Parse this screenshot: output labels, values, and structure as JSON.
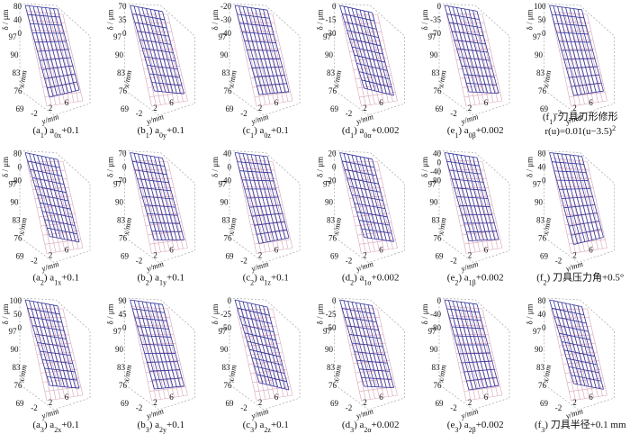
{
  "axes": {
    "z_label": "δ / μm",
    "x_label": "x/mm",
    "y_label": "y/mm",
    "xticks": [
      "97",
      "90",
      "83",
      "76",
      "69"
    ],
    "yticks": [
      "-2",
      "2",
      "6"
    ]
  },
  "panels": [
    {
      "zticks": [
        "80",
        "40",
        "0"
      ],
      "caption": [
        [
          {
            "t": "(a"
          },
          {
            "t": "1",
            "sub": true
          },
          {
            "t": ") a"
          },
          {
            "t": "0x",
            "sub": true
          },
          {
            "t": "+0.1"
          }
        ]
      ]
    },
    {
      "zticks": [
        "70",
        "35",
        "0"
      ],
      "caption": [
        [
          {
            "t": "(b"
          },
          {
            "t": "1",
            "sub": true
          },
          {
            "t": ") a"
          },
          {
            "t": "0y",
            "sub": true
          },
          {
            "t": "+0.1"
          }
        ]
      ]
    },
    {
      "zticks": [
        "-20",
        "-30",
        "-40"
      ],
      "caption": [
        [
          {
            "t": "(c"
          },
          {
            "t": "1",
            "sub": true
          },
          {
            "t": ") a"
          },
          {
            "t": "0z",
            "sub": true
          },
          {
            "t": "+0.1"
          }
        ]
      ]
    },
    {
      "zticks": [
        "0",
        "-15",
        "-30"
      ],
      "caption": [
        [
          {
            "t": "(d"
          },
          {
            "t": "1",
            "sub": true
          },
          {
            "t": ") a"
          },
          {
            "t": "0α",
            "sub": true
          },
          {
            "t": "+0.002"
          }
        ]
      ]
    },
    {
      "zticks": [
        "0",
        "-35",
        "-70"
      ],
      "caption": [
        [
          {
            "t": "(e"
          },
          {
            "t": "1",
            "sub": true
          },
          {
            "t": ") a"
          },
          {
            "t": "0β",
            "sub": true
          },
          {
            "t": "+0.002"
          }
        ]
      ]
    },
    {
      "zticks": [
        "100",
        "50",
        "0"
      ],
      "caption": [
        [
          {
            "t": "(f"
          },
          {
            "t": "1",
            "sub": true
          },
          {
            "t": ") 刀具刃形修形"
          }
        ],
        [
          {
            "t": "r(u)=0.01(u−3.5)"
          },
          {
            "t": "2",
            "sup": true
          }
        ]
      ]
    },
    {
      "zticks": [
        "80",
        "0",
        "-80"
      ],
      "caption": [
        [
          {
            "t": "(a"
          },
          {
            "t": "2",
            "sub": true
          },
          {
            "t": ") a"
          },
          {
            "t": "1x",
            "sub": true
          },
          {
            "t": "+0.1"
          }
        ]
      ]
    },
    {
      "zticks": [
        "70",
        "0",
        "-70"
      ],
      "caption": [
        [
          {
            "t": "(b"
          },
          {
            "t": "2",
            "sub": true
          },
          {
            "t": ") a"
          },
          {
            "t": "1y",
            "sub": true
          },
          {
            "t": "+0.1"
          }
        ]
      ]
    },
    {
      "zticks": [
        "40",
        "0",
        "-40"
      ],
      "caption": [
        [
          {
            "t": "(c"
          },
          {
            "t": "2",
            "sub": true
          },
          {
            "t": ") a"
          },
          {
            "t": "1z",
            "sub": true
          },
          {
            "t": "+0.1"
          }
        ]
      ]
    },
    {
      "zticks": [
        "20",
        "0",
        "-20"
      ],
      "caption": [
        [
          {
            "t": "(d"
          },
          {
            "t": "2",
            "sub": true
          },
          {
            "t": ") a"
          },
          {
            "t": "1α",
            "sub": true
          },
          {
            "t": "+0.002"
          }
        ]
      ]
    },
    {
      "zticks": [
        "40",
        "0",
        "-40",
        "-80"
      ],
      "caption": [
        [
          {
            "t": "(e"
          },
          {
            "t": "2",
            "sub": true
          },
          {
            "t": ") a"
          },
          {
            "t": "1β",
            "sub": true
          },
          {
            "t": "+0.002"
          }
        ]
      ]
    },
    {
      "zticks": [
        "80",
        "40",
        "0"
      ],
      "caption": [
        [
          {
            "t": "(f"
          },
          {
            "t": "2",
            "sub": true
          },
          {
            "t": ") 刀具压力角+0.5°"
          }
        ]
      ]
    },
    {
      "zticks": [
        "100",
        "50",
        "0"
      ],
      "caption": [
        [
          {
            "t": "(a"
          },
          {
            "t": "3",
            "sub": true
          },
          {
            "t": ") a"
          },
          {
            "t": "2x",
            "sub": true
          },
          {
            "t": "+0.1"
          }
        ]
      ]
    },
    {
      "zticks": [
        "90",
        "45",
        "0"
      ],
      "caption": [
        [
          {
            "t": "(b"
          },
          {
            "t": "3",
            "sub": true
          },
          {
            "t": ") a"
          },
          {
            "t": "2y",
            "sub": true
          },
          {
            "t": "+0.1"
          }
        ]
      ]
    },
    {
      "zticks": [
        "0",
        "-25",
        "-50"
      ],
      "caption": [
        [
          {
            "t": "(c"
          },
          {
            "t": "3",
            "sub": true
          },
          {
            "t": ") a"
          },
          {
            "t": "2z",
            "sub": true
          },
          {
            "t": "+0.1"
          }
        ]
      ]
    },
    {
      "zticks": [
        "0",
        "-25",
        "-50"
      ],
      "caption": [
        [
          {
            "t": "(d"
          },
          {
            "t": "3",
            "sub": true
          },
          {
            "t": ") a"
          },
          {
            "t": "2α",
            "sub": true
          },
          {
            "t": "+0.002"
          }
        ]
      ]
    },
    {
      "zticks": [
        "0",
        "-40",
        "-80"
      ],
      "caption": [
        [
          {
            "t": "(e"
          },
          {
            "t": "3",
            "sub": true
          },
          {
            "t": ") a"
          },
          {
            "t": "2β",
            "sub": true
          },
          {
            "t": "+0.002"
          }
        ]
      ]
    },
    {
      "zticks": [
        "80",
        "40",
        "0"
      ],
      "caption": [
        [
          {
            "t": "(f"
          },
          {
            "t": "3",
            "sub": true
          },
          {
            "t": ") 刀具半径+0.1 mm"
          }
        ]
      ]
    }
  ]
}
